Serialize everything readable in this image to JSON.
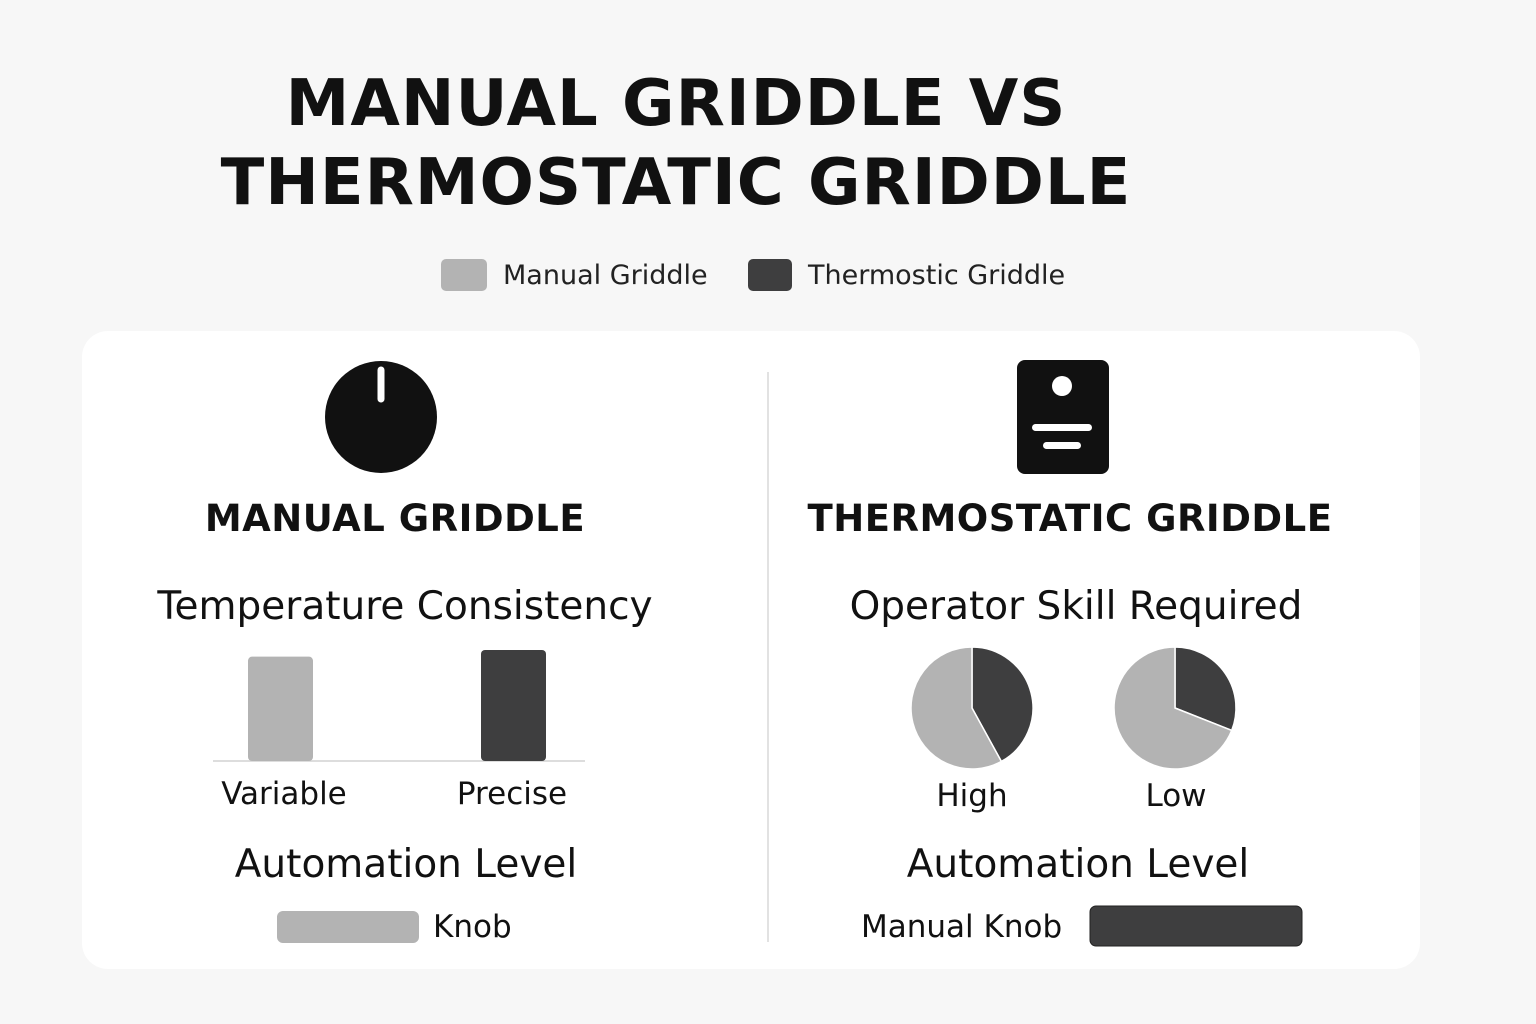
{
  "title": {
    "line1": "MANUAL GRIDDLE VS",
    "line2": "THERMOSTATIC GRIDDLE"
  },
  "legend": [
    {
      "label": "Manual Griddle",
      "color": "#b3b3b3"
    },
    {
      "label": "Thermostic Griddle",
      "color": "#3e3e3f"
    }
  ],
  "left": {
    "icon": "knob-dial-icon",
    "heading": "MANUAL GRIDDLE",
    "subheading": "Temperature Consistency",
    "automation_title": "Automation Level",
    "automation_label": "Knob"
  },
  "right": {
    "icon": "thermostat-controller-icon",
    "heading": "THERMOSTATIC GRIDDLE",
    "subheading": "Operator Skill Required",
    "automation_title": "Automation Level",
    "automation_label": "Manual Knob"
  },
  "chart_data": [
    {
      "type": "bar",
      "title": "Temperature Consistency",
      "categories": [
        "Variable",
        "Precise"
      ],
      "values": [
        94,
        100
      ],
      "colors": [
        "#b3b3b3",
        "#3e3e3f"
      ],
      "grid": false
    },
    {
      "type": "pie",
      "title": "Operator Skill Required",
      "pies": [
        {
          "label": "High",
          "slices": [
            {
              "series": "Thermostic Griddle",
              "value": 42
            },
            {
              "series": "Manual Griddle",
              "value": 58
            }
          ]
        },
        {
          "label": "Low",
          "slices": [
            {
              "series": "Thermostic Griddle",
              "value": 31
            },
            {
              "series": "Manual Griddle",
              "value": 69
            }
          ]
        }
      ]
    }
  ]
}
